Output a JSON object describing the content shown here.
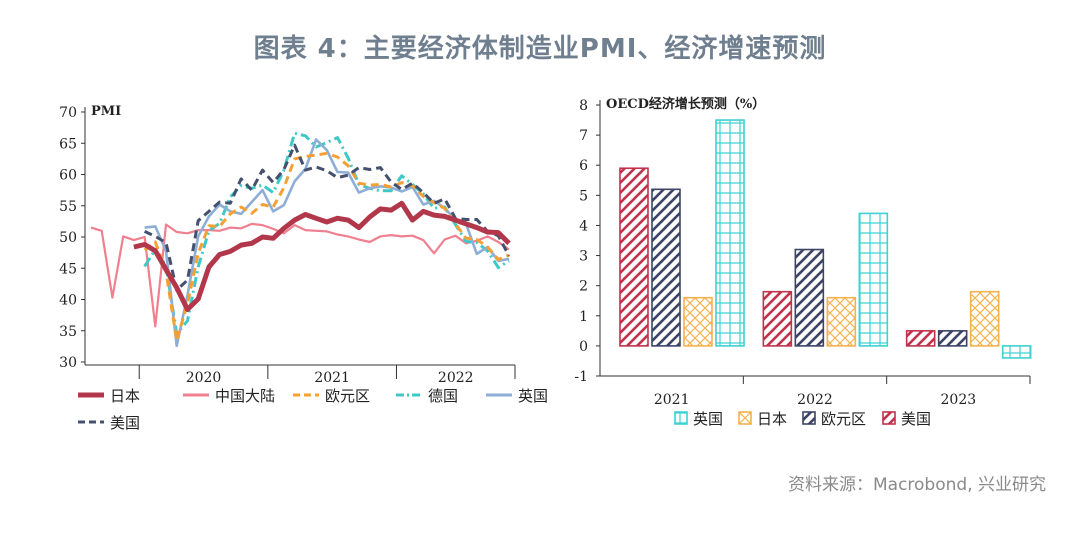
{
  "page": {
    "title": "图表 4：主要经济体制造业PMI、经济增速预测",
    "source": "资料来源：Macrobond, 兴业研究"
  },
  "chart_data": [
    {
      "type": "line",
      "title": "PMI",
      "ylim": [
        30,
        70
      ],
      "yticks": [
        30,
        35,
        40,
        45,
        50,
        55,
        60,
        65,
        70
      ],
      "xticks": [
        "2020",
        "2021",
        "2022"
      ],
      "x_months": [
        "2019-08",
        "2019-09",
        "2019-10",
        "2019-11",
        "2019-12",
        "2020-01",
        "2020-02",
        "2020-03",
        "2020-04",
        "2020-05",
        "2020-06",
        "2020-07",
        "2020-08",
        "2020-09",
        "2020-10",
        "2020-11",
        "2020-12",
        "2021-01",
        "2021-02",
        "2021-03",
        "2021-04",
        "2021-05",
        "2021-06",
        "2021-07",
        "2021-08",
        "2021-09",
        "2021-10",
        "2021-11",
        "2021-12",
        "2022-01",
        "2022-02",
        "2022-03",
        "2022-04",
        "2022-05",
        "2022-06",
        "2022-07",
        "2022-08",
        "2022-09",
        "2022-10",
        "2022-11"
      ],
      "legend_placement": "bottom",
      "series": [
        {
          "name": "日本",
          "color": "#b3374a",
          "values": [
            null,
            null,
            null,
            null,
            48.4,
            48.8,
            47.8,
            44.8,
            41.9,
            38.4,
            40.1,
            45.2,
            47.2,
            47.7,
            48.7,
            49.0,
            50.0,
            49.8,
            51.4,
            52.7,
            53.6,
            53.0,
            52.4,
            53.0,
            52.7,
            51.5,
            53.2,
            54.5,
            54.3,
            55.4,
            52.7,
            54.1,
            53.5,
            53.3,
            52.7,
            52.1,
            51.5,
            50.8,
            50.7,
            49.0
          ]
        },
        {
          "name": "中国大陆",
          "color": "#f0808f",
          "values": [
            51.5,
            51.0,
            40.3,
            50.1,
            49.5,
            50.0,
            35.7,
            52.0,
            50.8,
            50.6,
            51.1,
            51.1,
            51.0,
            51.5,
            51.4,
            52.1,
            51.9,
            51.3,
            50.6,
            51.9,
            51.1,
            51.0,
            50.9,
            50.4,
            50.1,
            49.6,
            49.2,
            50.1,
            50.3,
            50.1,
            50.2,
            49.5,
            47.4,
            49.6,
            50.2,
            49.0,
            49.4,
            50.1,
            49.2,
            48.0
          ]
        },
        {
          "name": "欧元区",
          "color": "#f5a033",
          "values": [
            null,
            null,
            null,
            null,
            null,
            47.9,
            49.2,
            44.5,
            33.4,
            39.4,
            47.4,
            51.8,
            51.7,
            53.7,
            54.8,
            53.8,
            55.2,
            54.8,
            57.9,
            62.5,
            62.9,
            63.1,
            63.4,
            62.8,
            61.4,
            58.6,
            58.3,
            58.4,
            58.0,
            58.7,
            58.2,
            56.5,
            55.5,
            54.6,
            52.1,
            49.8,
            49.6,
            48.4,
            46.4,
            47.1
          ]
        },
        {
          "name": "德国",
          "color": "#3fc8c8",
          "values": [
            null,
            null,
            null,
            null,
            null,
            45.3,
            48.0,
            45.4,
            34.5,
            36.6,
            45.2,
            51.0,
            52.2,
            56.4,
            58.2,
            57.8,
            58.3,
            57.1,
            60.7,
            66.6,
            66.2,
            64.4,
            65.1,
            65.9,
            62.6,
            58.4,
            57.8,
            57.4,
            57.4,
            59.8,
            58.4,
            56.9,
            54.6,
            54.8,
            52.0,
            49.3,
            49.1,
            47.8,
            45.1,
            46.2
          ]
        },
        {
          "name": "英国",
          "color": "#8eaed6",
          "values": [
            null,
            null,
            null,
            null,
            null,
            51.5,
            51.7,
            47.8,
            32.6,
            40.7,
            50.1,
            53.3,
            55.2,
            54.1,
            53.7,
            55.6,
            57.5,
            54.1,
            55.1,
            58.9,
            60.9,
            65.6,
            63.9,
            60.4,
            60.3,
            57.1,
            57.8,
            58.1,
            57.9,
            57.3,
            58.0,
            55.2,
            55.8,
            54.6,
            52.8,
            52.1,
            47.3,
            48.4,
            46.2,
            46.5
          ]
        },
        {
          "name": "美国",
          "color": "#44506e",
          "values": [
            null,
            null,
            null,
            null,
            null,
            50.9,
            50.1,
            49.1,
            41.5,
            43.1,
            52.6,
            54.1,
            55.6,
            55.4,
            59.3,
            57.5,
            60.7,
            58.7,
            60.8,
            64.7,
            60.7,
            61.2,
            60.6,
            59.5,
            59.9,
            61.1,
            60.8,
            61.1,
            58.8,
            57.6,
            58.6,
            57.1,
            55.4,
            56.1,
            53.0,
            52.8,
            52.8,
            50.9,
            50.2,
            47.0
          ]
        }
      ]
    },
    {
      "type": "bar",
      "title": "OECD经济增长预测（%）",
      "ylim": [
        -1,
        8
      ],
      "yticks": [
        "-1",
        "0",
        "1",
        "2",
        "3",
        "4",
        "5",
        "6",
        "7",
        "8"
      ],
      "categories": [
        "2021",
        "2022",
        "2023"
      ],
      "legend_placement": "bottom",
      "series": [
        {
          "name": "美国",
          "color": "#c1334d",
          "pattern": "diagonal",
          "values": [
            5.9,
            1.8,
            0.5
          ]
        },
        {
          "name": "欧元区",
          "color": "#3d4466",
          "pattern": "diagonal",
          "values": [
            5.2,
            3.2,
            0.5
          ]
        },
        {
          "name": "日本",
          "color": "#f4b24f",
          "pattern": "crosshatch",
          "values": [
            1.6,
            1.6,
            1.8
          ]
        },
        {
          "name": "英国",
          "color": "#3fd0d3",
          "pattern": "grid",
          "values": [
            7.5,
            4.4,
            -0.4
          ]
        }
      ],
      "legend_order": [
        "英国",
        "日本",
        "欧元区",
        "美国"
      ]
    }
  ]
}
